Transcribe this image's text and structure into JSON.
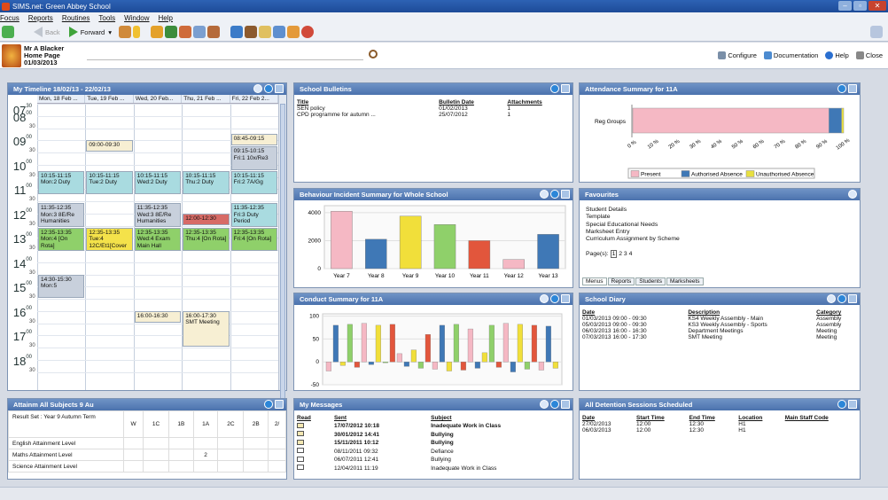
{
  "window": {
    "title": "SIMS.net: Green Abbey School"
  },
  "menu": [
    "Focus",
    "Reports",
    "Routines",
    "Tools",
    "Window",
    "Help"
  ],
  "toolbar": {
    "back": "Back",
    "forward": "Forward"
  },
  "user": {
    "name": "Mr A Blacker",
    "page": "Home Page",
    "date": "01/03/2013"
  },
  "search": {
    "value": ""
  },
  "links": {
    "configure": "Configure",
    "documentation": "Documentation",
    "help": "Help",
    "close": "Close"
  },
  "timeline": {
    "title": "My Timeline 18/02/13 - 22/02/13",
    "days": [
      "Mon, 18 Feb ...",
      "Tue, 19 Feb ...",
      "Wed, 20 Feb...",
      "Thu, 21 Feb ...",
      "Fri, 22 Feb 2..."
    ],
    "hours": [
      "07",
      "08",
      "09",
      "10",
      "11",
      "12",
      "13",
      "14",
      "15",
      "16",
      "17",
      "18"
    ],
    "events": [
      {
        "text": "08:45-09:15",
        "color": "#f7efd3"
      },
      {
        "text": "09:00-09:30",
        "color": "#f7efd3"
      },
      {
        "text": "09:15-10:15 Fri:1 10x/Re3",
        "color": "#c8d0dc"
      },
      {
        "text": "10:15-11:15 Mon:2 Duty",
        "color": "#a9dbe0"
      },
      {
        "text": "10:15-11:15 Tue:2 Duty",
        "color": "#a9dbe0"
      },
      {
        "text": "10:15-11:15 Wed:2 Duty",
        "color": "#a9dbe0"
      },
      {
        "text": "10:15-11:15 Thu:2 Duty",
        "color": "#a9dbe0"
      },
      {
        "text": "10:15-11:15 Fri:2 7A/Gg",
        "color": "#a9dbe0"
      },
      {
        "text": "11:35-12:35 Mon:3 8E/Re Humanities",
        "color": "#c8d0dc"
      },
      {
        "text": "11:35-12:35 Wed:3 8E/Re Humanities",
        "color": "#c8d0dc"
      },
      {
        "text": "12:00-12:30",
        "color": "#d76b66"
      },
      {
        "text": "11:35-12:35 Fri:3 Duty Period",
        "color": "#a9dbe0"
      },
      {
        "text": "12:35-13:35 Mon:4 [On Rota]",
        "color": "#8fd06a"
      },
      {
        "text": "12:35-13:35 Tue:4 12C/Et1[Cover",
        "color": "#f4e24a"
      },
      {
        "text": "12:35-13:35 Wed:4 Exam Main Hall",
        "color": "#8fd06a"
      },
      {
        "text": "12:35-13:35 Thu:4 [On Rota]",
        "color": "#8fd06a"
      },
      {
        "text": "12:35-13:35 Fri:4 [On Rota]",
        "color": "#8fd06a"
      },
      {
        "text": "14:30-15:30 Mon:5",
        "color": "#c8d0dc"
      },
      {
        "text": "16:00-16:30",
        "color": "#f7efd3"
      },
      {
        "text": "16:00-17:30 SMT Meeting",
        "color": "#f7efd3"
      }
    ]
  },
  "bulletins": {
    "title": "School Bulletins",
    "headers": [
      "Title",
      "Bulletin Date",
      "Attachments"
    ],
    "rows": [
      [
        "SEN policy",
        "01/02/2013",
        "1"
      ],
      [
        "CPD programme for autumn ...",
        "25/07/2012",
        "1"
      ]
    ]
  },
  "attendance": {
    "title": "Attendance Summary for 11A",
    "legend": [
      "Present",
      "Authorised Absence",
      "Unauthorised Absence"
    ]
  },
  "behaviour": {
    "title": "Behaviour Incident Summary for Whole School"
  },
  "conduct": {
    "title": "Conduct Summary for 11A"
  },
  "favourites": {
    "title": "Favourites",
    "items": [
      "Student Details",
      "Template",
      "Special Educational Needs",
      "Marksheet Entry",
      "Curriculum Assignment by Scheme"
    ],
    "pages_label": "Page(s):",
    "pages": [
      "1",
      "2",
      "3",
      "4"
    ],
    "tabs": [
      "Menus",
      "Reports",
      "Students",
      "Marksheets"
    ]
  },
  "diary": {
    "title": "School Diary",
    "headers": [
      "Date",
      "Description",
      "Category"
    ],
    "rows": [
      [
        "01/03/2013 09:00 - 09:30",
        "KS4 Weekly Assembly - Main",
        "Assembly"
      ],
      [
        "05/03/2013 09:00 - 09:30",
        "KS3 Weekly Assembly - Sports",
        "Assembly"
      ],
      [
        "06/03/2013 16:00 - 16:30",
        "Department Meetings",
        "Meeting"
      ],
      [
        "07/03/2013 16:00 - 17:30",
        "SMT Meeting",
        "Meeting"
      ]
    ]
  },
  "attainment": {
    "title": "Attainm All Subjects 9 Au",
    "result_set": "Result Set : Year 9 Autumn Term",
    "cols": [
      "W",
      "1C",
      "1B",
      "1A",
      "2C",
      "2B",
      "2/"
    ],
    "rows": [
      {
        "label": "English Attainment Level",
        "values": [
          "",
          "",
          "",
          "",
          "",
          "",
          ""
        ]
      },
      {
        "label": "Maths Attainment Level",
        "values": [
          "",
          "",
          "",
          "2",
          "",
          "",
          ""
        ]
      },
      {
        "label": "Science Attainment Level",
        "values": [
          "",
          "",
          "",
          "",
          "",
          "",
          ""
        ]
      }
    ]
  },
  "messages": {
    "title": "My Messages",
    "headers": [
      "Read",
      "Sent",
      "Subject"
    ],
    "rows": [
      [
        "17/07/2012 10:18",
        "Inadequate Work in Class",
        "bold"
      ],
      [
        "30/01/2012 14:41",
        "Bullying",
        "bold"
      ],
      [
        "15/11/2011 10:12",
        "Bullying",
        "bold"
      ],
      [
        "08/11/2011 09:32",
        "Defiance",
        "normal"
      ],
      [
        "06/07/2011 12:41",
        "Bullying",
        "normal"
      ],
      [
        "12/04/2011 11:19",
        "Inadequate Work in Class",
        "normal"
      ]
    ]
  },
  "detention": {
    "title": "All Detention Sessions Scheduled",
    "headers": [
      "Date",
      "Start Time",
      "End Time",
      "Location",
      "Main Staff Code"
    ],
    "rows": [
      [
        "27/02/2013",
        "12:00",
        "12:30",
        "H1",
        ""
      ],
      [
        "06/03/2013",
        "12:00",
        "12:30",
        "H1",
        ""
      ]
    ]
  },
  "chart_data": [
    {
      "type": "bar",
      "orientation": "horizontal",
      "stacked": true,
      "title": "Attendance Summary for 11A",
      "categories": [
        "Reg Groups"
      ],
      "series": [
        {
          "name": "Present",
          "values": [
            93
          ]
        },
        {
          "name": "Authorised Absence",
          "values": [
            6
          ]
        },
        {
          "name": "Unauthorised Absence",
          "values": [
            1
          ]
        }
      ],
      "xticks": [
        "0 %",
        "10 %",
        "20 %",
        "30 %",
        "40 %",
        "50 %",
        "60 %",
        "70 %",
        "80 %",
        "90 %",
        "100 %"
      ],
      "xlim": [
        0,
        100
      ],
      "colors": [
        "#f5b8c4",
        "#3f78b6",
        "#e8e040"
      ]
    },
    {
      "type": "bar",
      "title": "Behaviour Incident Summary for Whole School",
      "categories": [
        "Year 7",
        "Year 8",
        "Year 9",
        "Year 10",
        "Year 11",
        "Year 12",
        "Year 13"
      ],
      "values": [
        4100,
        2100,
        3750,
        3150,
        2000,
        650,
        2450
      ],
      "colors": [
        "#f5b8c4",
        "#3f78b6",
        "#f1df3a",
        "#8fd06a",
        "#e2563c",
        "#f5b8c4",
        "#3f78b6"
      ],
      "yticks": [
        0,
        2000,
        4000
      ],
      "ylim": [
        0,
        4500
      ]
    },
    {
      "type": "bar",
      "title": "Conduct Summary for 11A",
      "values": [
        -20,
        80,
        -8,
        82,
        -12,
        84,
        -6,
        80,
        -2,
        82,
        18,
        -10,
        26,
        -14,
        60,
        -16,
        80,
        -20,
        82,
        -18,
        72,
        -14,
        20,
        80,
        -12,
        84,
        -22,
        82,
        -16,
        80,
        -18,
        78,
        -14
      ],
      "yticks": [
        -50,
        0,
        50,
        100
      ],
      "ylim": [
        -50,
        105
      ],
      "palette": [
        "#f5b8c4",
        "#3f78b6",
        "#f1df3a",
        "#8fd06a",
        "#e2563c"
      ]
    }
  ]
}
